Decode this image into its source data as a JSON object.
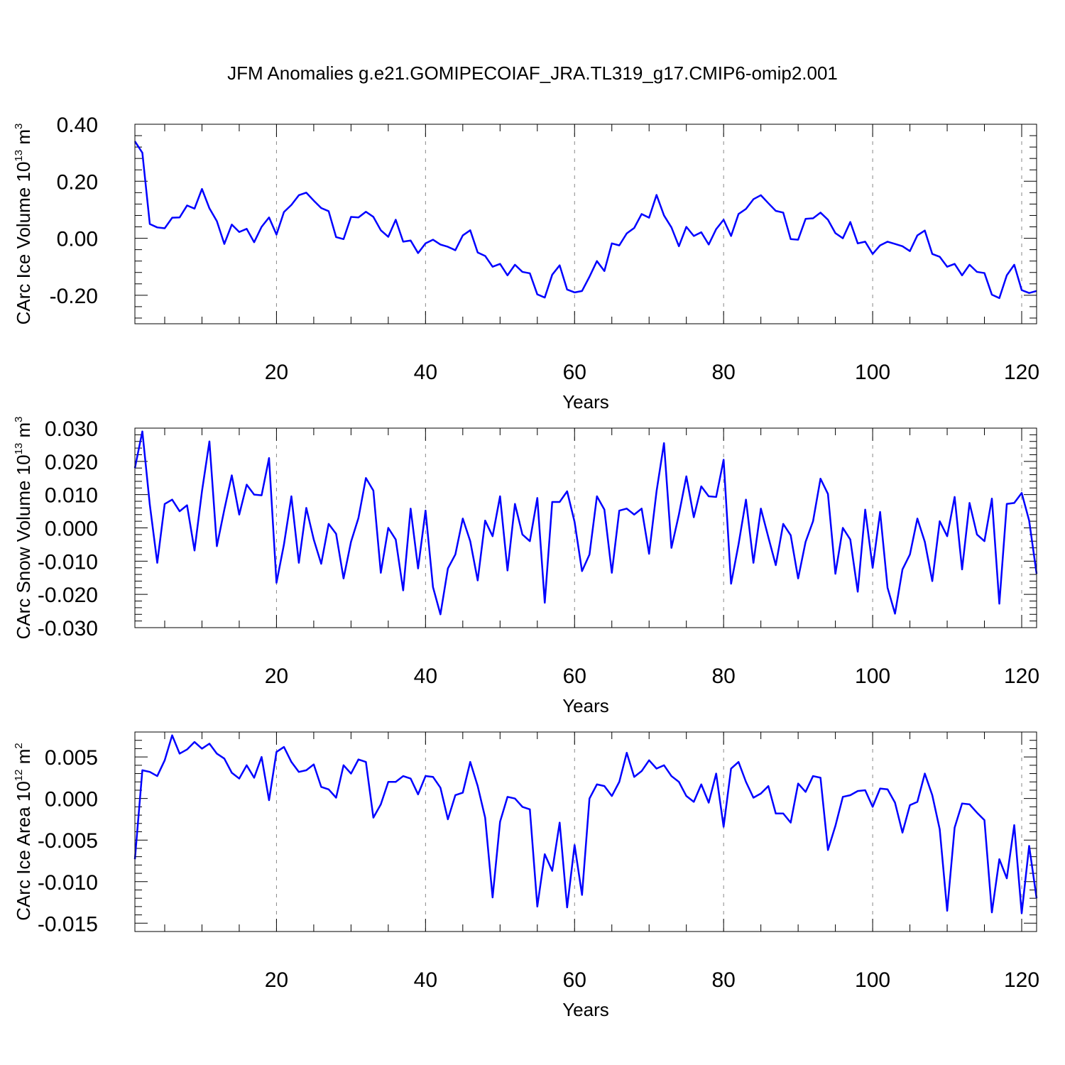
{
  "figure": {
    "title": "JFM Anomalies g.e21.GOMIPECOIAF_JRA.TL319_g17.CMIP6-omip2.001"
  },
  "chart_data": [
    {
      "type": "line",
      "ylabel": {
        "main": "CArc Ice Volume 10",
        "exp": "13",
        "unit": " m",
        "unit_exp": "3"
      },
      "xlabel": "Years",
      "xlim": [
        1,
        122
      ],
      "ylim": [
        -0.3,
        0.4
      ],
      "yticks": [
        -0.2,
        0.0,
        0.2,
        0.4
      ],
      "yticklabels": [
        "-0.20",
        "0.00",
        "0.20",
        "0.40"
      ],
      "xticks": [
        20,
        40,
        60,
        80,
        100,
        120
      ],
      "xticklabels": [
        "20",
        "40",
        "60",
        "80",
        "100",
        "120"
      ],
      "grid": "vertical dashed at major x ticks",
      "line_color": "#0000ff",
      "x_start": 1,
      "values": [
        0.34,
        0.3,
        0.05,
        0.038,
        0.035,
        0.072,
        0.073,
        0.115,
        0.104,
        0.173,
        0.105,
        0.06,
        -0.02,
        0.048,
        0.022,
        0.033,
        -0.014,
        0.04,
        0.073,
        0.013,
        0.092,
        0.117,
        0.151,
        0.16,
        0.132,
        0.106,
        0.095,
        0.004,
        -0.003,
        0.075,
        0.073,
        0.093,
        0.075,
        0.028,
        0.005,
        0.065,
        -0.012,
        -0.008,
        -0.052,
        -0.018,
        -0.005,
        -0.022,
        -0.03,
        -0.042,
        0.01,
        0.028,
        -0.05,
        -0.062,
        -0.1,
        -0.09,
        -0.13,
        -0.093,
        -0.118,
        -0.123,
        -0.197,
        -0.208,
        -0.128,
        -0.095,
        -0.18,
        -0.19,
        -0.185,
        -0.135,
        -0.08,
        -0.115,
        -0.018,
        -0.025,
        0.017,
        0.036,
        0.085,
        0.072,
        0.152,
        0.08,
        0.038,
        -0.028,
        0.04,
        0.008,
        0.021,
        -0.022,
        0.032,
        0.065,
        0.008,
        0.085,
        0.103,
        0.137,
        0.151,
        0.123,
        0.096,
        0.09,
        -0.003,
        -0.005,
        0.068,
        0.07,
        0.09,
        0.065,
        0.018,
        0.0,
        0.057,
        -0.018,
        -0.012,
        -0.055,
        -0.025,
        -0.012,
        -0.02,
        -0.028,
        -0.045,
        0.01,
        0.027,
        -0.055,
        -0.065,
        -0.1,
        -0.09,
        -0.13,
        -0.093,
        -0.118,
        -0.122,
        -0.198,
        -0.21,
        -0.13,
        -0.093,
        -0.182,
        -0.192,
        -0.185
      ]
    },
    {
      "type": "line",
      "ylabel": {
        "main": "CArc Snow Volume 10",
        "exp": "13",
        "unit": " m",
        "unit_exp": "3"
      },
      "xlabel": "Years",
      "xlim": [
        1,
        122
      ],
      "ylim": [
        -0.03,
        0.03
      ],
      "yticks": [
        -0.03,
        -0.02,
        -0.01,
        0.0,
        0.01,
        0.02,
        0.03
      ],
      "yticklabels": [
        "-0.030",
        "-0.020",
        "-0.010",
        "0.000",
        "0.010",
        "0.020",
        "0.030"
      ],
      "xticks": [
        20,
        40,
        60,
        80,
        100,
        120
      ],
      "xticklabels": [
        "20",
        "40",
        "60",
        "80",
        "100",
        "120"
      ],
      "grid": "vertical dashed at major x ticks",
      "line_color": "#0000ff",
      "x_start": 1,
      "values": [
        0.018,
        0.029,
        0.007,
        -0.0105,
        0.0072,
        0.0085,
        0.005,
        0.0068,
        -0.0068,
        0.011,
        0.026,
        -0.0055,
        0.0055,
        0.0158,
        0.004,
        0.013,
        0.01,
        0.0098,
        0.021,
        -0.0165,
        -0.005,
        0.0095,
        -0.0105,
        0.006,
        -0.0035,
        -0.0108,
        0.0012,
        -0.0018,
        -0.0152,
        -0.0042,
        0.003,
        0.015,
        0.0112,
        -0.0135,
        0.0,
        -0.0035,
        -0.0188,
        0.0058,
        -0.0122,
        0.0052,
        -0.0178,
        -0.026,
        -0.0122,
        -0.008,
        0.0028,
        -0.004,
        -0.0158,
        0.0022,
        -0.0025,
        0.0095,
        -0.0128,
        0.0072,
        -0.002,
        -0.004,
        0.009,
        -0.0225,
        0.0078,
        0.0078,
        0.011,
        0.0018,
        -0.013,
        -0.008,
        0.0095,
        0.0055,
        -0.0135,
        0.0052,
        0.0058,
        0.004,
        0.0058,
        -0.0078,
        0.011,
        0.0255,
        -0.006,
        0.004,
        0.0155,
        0.0032,
        0.0125,
        0.0095,
        0.0093,
        0.0205,
        -0.0168,
        -0.005,
        0.0085,
        -0.0105,
        0.0058,
        -0.0028,
        -0.0112,
        0.0012,
        -0.0022,
        -0.0152,
        -0.0042,
        0.002,
        0.0148,
        0.0102,
        -0.0138,
        0.0,
        -0.0035,
        -0.0192,
        0.0055,
        -0.012,
        0.0048,
        -0.018,
        -0.0258,
        -0.0125,
        -0.008,
        0.0028,
        -0.0042,
        -0.016,
        0.002,
        -0.0025,
        0.0093,
        -0.0125,
        0.0075,
        -0.002,
        -0.004,
        0.0088,
        -0.0228,
        0.0072,
        0.0075,
        0.0105,
        0.0022,
        -0.0138
      ]
    },
    {
      "type": "line",
      "ylabel": {
        "main": "CArc Ice Area 10",
        "exp": "12",
        "unit": " m",
        "unit_exp": "2"
      },
      "xlabel": "Years",
      "xlim": [
        1,
        122
      ],
      "ylim": [
        -0.016,
        0.008
      ],
      "yticks": [
        -0.015,
        -0.01,
        -0.005,
        0.0,
        0.005
      ],
      "yticklabels": [
        "-0.015",
        "-0.010",
        "-0.005",
        "0.000",
        "0.005"
      ],
      "xticks": [
        20,
        40,
        60,
        80,
        100,
        120
      ],
      "xticklabels": [
        "20",
        "40",
        "60",
        "80",
        "100",
        "120"
      ],
      "grid": "vertical dashed at major x ticks",
      "line_color": "#0000ff",
      "x_start": 1,
      "values": [
        -0.0073,
        0.0034,
        0.0032,
        0.0027,
        0.0046,
        0.0076,
        0.0054,
        0.0059,
        0.0068,
        0.006,
        0.0066,
        0.0054,
        0.0048,
        0.0031,
        0.0024,
        0.004,
        0.0025,
        0.005,
        -0.0002,
        0.0056,
        0.0062,
        0.0044,
        0.0032,
        0.0034,
        0.0041,
        0.0014,
        0.0011,
        0.0001,
        0.004,
        0.003,
        0.0047,
        0.0044,
        -0.0023,
        -0.0007,
        0.002,
        0.002,
        0.0027,
        0.0024,
        0.0005,
        0.0027,
        0.0026,
        0.0013,
        -0.0025,
        0.0004,
        0.0007,
        0.0044,
        0.0015,
        -0.0023,
        -0.0119,
        -0.0028,
        0.0002,
        0.0,
        -0.001,
        -0.0013,
        -0.013,
        -0.0067,
        -0.0087,
        -0.0029,
        -0.0131,
        -0.0056,
        -0.0116,
        0.0,
        0.0017,
        0.0015,
        0.0003,
        0.002,
        0.0055,
        0.0026,
        0.0033,
        0.0046,
        0.0036,
        0.004,
        0.0027,
        0.002,
        0.0003,
        -0.0004,
        0.0017,
        -0.0005,
        0.003,
        -0.0034,
        0.0036,
        0.0044,
        0.002,
        0.0001,
        0.0006,
        0.0015,
        -0.0018,
        -0.0018,
        -0.0029,
        0.0018,
        0.0008,
        0.0027,
        0.0025,
        -0.0062,
        -0.0033,
        0.0002,
        0.0004,
        0.0009,
        0.001,
        -0.001,
        0.0012,
        0.0011,
        -0.0005,
        -0.0041,
        -0.0008,
        -0.0004,
        0.003,
        0.0004,
        -0.0037,
        -0.0135,
        -0.0035,
        -0.0006,
        -0.0007,
        -0.0017,
        -0.0026,
        -0.0137,
        -0.0073,
        -0.0096,
        -0.0032,
        -0.0138,
        -0.0057,
        -0.012
      ]
    }
  ]
}
